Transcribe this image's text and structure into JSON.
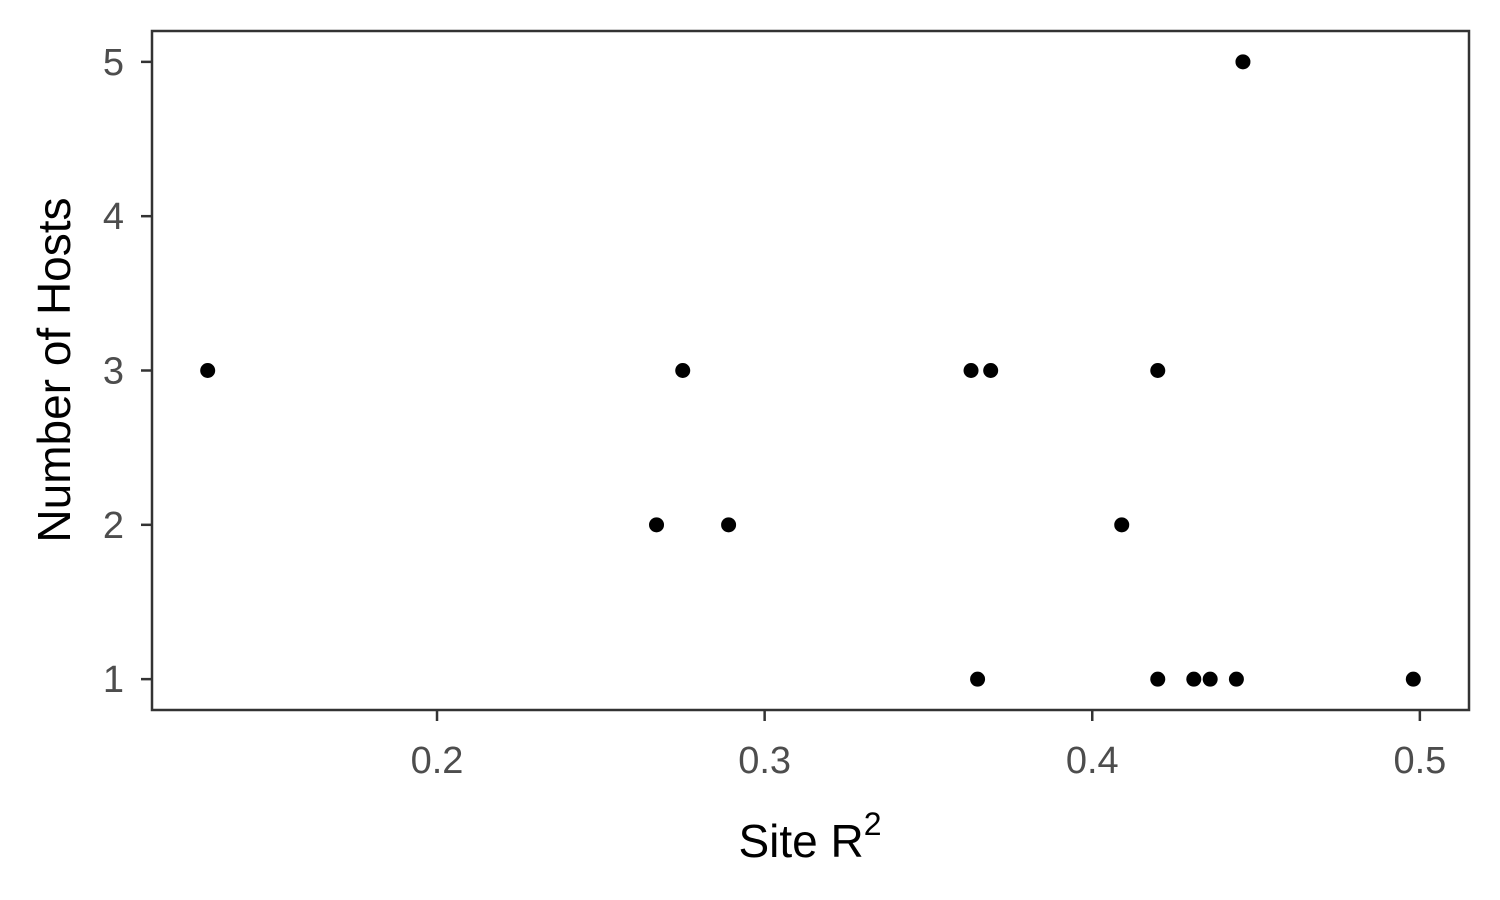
{
  "chart_data": {
    "type": "scatter",
    "title": "",
    "xlabel": "Site R",
    "xlabel_superscript": "2",
    "ylabel": "Number of Hosts",
    "xlim": [
      0.113,
      0.515
    ],
    "ylim": [
      0.8,
      5.2
    ],
    "x_ticks": [
      0.2,
      0.3,
      0.4,
      0.5
    ],
    "x_tick_labels": [
      "0.2",
      "0.3",
      "0.4",
      "0.5"
    ],
    "y_ticks": [
      1,
      2,
      3,
      4,
      5
    ],
    "y_tick_labels": [
      "1",
      "2",
      "3",
      "4",
      "5"
    ],
    "grid": false,
    "point_color": "#000000",
    "points": [
      {
        "x": 0.13,
        "y": 3
      },
      {
        "x": 0.267,
        "y": 2
      },
      {
        "x": 0.275,
        "y": 3
      },
      {
        "x": 0.289,
        "y": 2
      },
      {
        "x": 0.363,
        "y": 3
      },
      {
        "x": 0.365,
        "y": 1
      },
      {
        "x": 0.369,
        "y": 3
      },
      {
        "x": 0.409,
        "y": 2
      },
      {
        "x": 0.42,
        "y": 3
      },
      {
        "x": 0.42,
        "y": 1
      },
      {
        "x": 0.431,
        "y": 1
      },
      {
        "x": 0.436,
        "y": 1
      },
      {
        "x": 0.444,
        "y": 1
      },
      {
        "x": 0.446,
        "y": 5
      },
      {
        "x": 0.498,
        "y": 1
      }
    ]
  }
}
